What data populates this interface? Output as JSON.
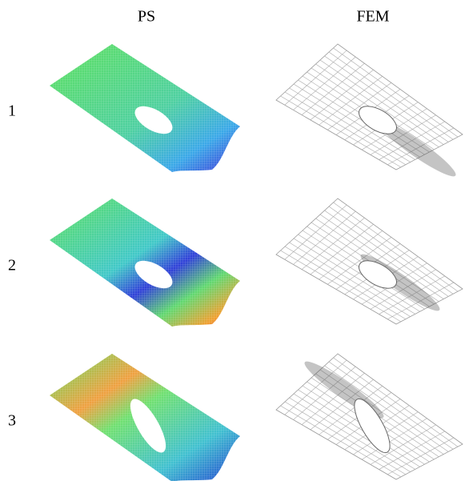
{
  "columns": [
    "PS",
    "FEM"
  ],
  "rows": [
    "1",
    "2",
    "3"
  ]
}
